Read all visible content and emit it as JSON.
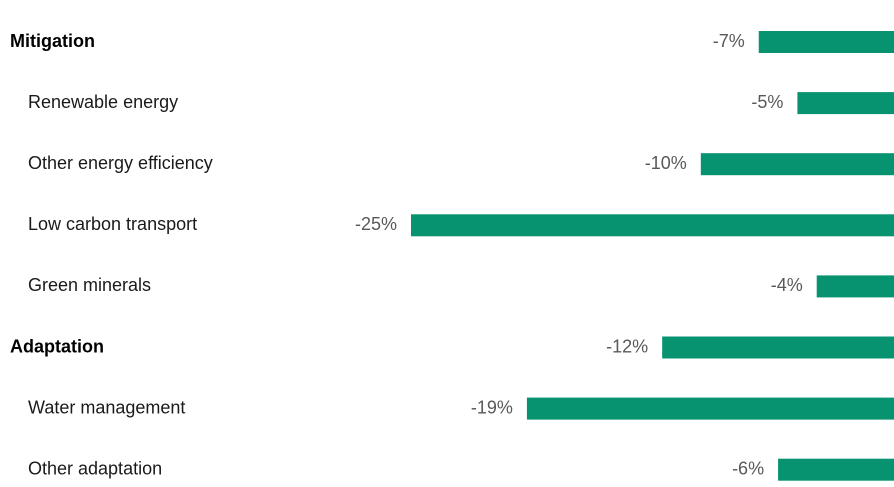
{
  "chart_data": {
    "type": "bar",
    "categories": [
      "Mitigation",
      "Renewable energy",
      "Other energy efficiency",
      "Low carbon transport",
      "Green minerals",
      "Adaptation",
      "Water management",
      "Other adaptation"
    ],
    "levels": [
      0,
      1,
      1,
      1,
      1,
      0,
      1,
      1
    ],
    "values": [
      -7,
      -5,
      -10,
      -25,
      -4,
      -12,
      -19,
      -6
    ],
    "value_labels": [
      "-7%",
      "-5%",
      "-10%",
      "-25%",
      "-4%",
      "-12%",
      "-19%",
      "-6%"
    ],
    "color": "#07936f",
    "xlim": [
      -25,
      0
    ]
  }
}
